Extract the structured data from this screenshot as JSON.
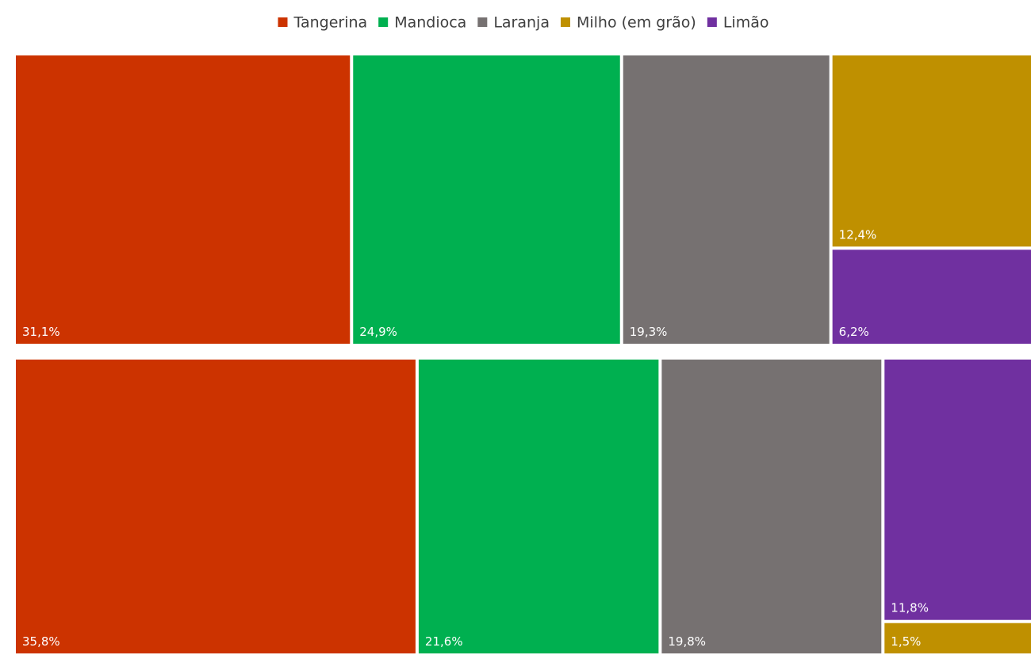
{
  "chart_data": {
    "type": "treemap",
    "series": [
      {
        "name": "Tangerina",
        "color": "#cc3300",
        "values": [
          31.1,
          35.8
        ],
        "value_labels": [
          "31,1%",
          "35,8%"
        ]
      },
      {
        "name": "Mandioca",
        "color": "#00b050",
        "values": [
          24.9,
          21.6
        ],
        "value_labels": [
          "24,9%",
          "21,6%"
        ]
      },
      {
        "name": "Laranja",
        "color": "#767171",
        "values": [
          19.3,
          19.8
        ],
        "value_labels": [
          "19,3%",
          "19,8%"
        ]
      },
      {
        "name": "Milho (em grão)",
        "color": "#bf9000",
        "values": [
          12.4,
          1.5
        ],
        "value_labels": [
          "12,4%",
          "1,5%"
        ]
      },
      {
        "name": "Limão",
        "color": "#7030a0",
        "values": [
          6.2,
          11.8
        ],
        "value_labels": [
          "6,2%",
          "11,8%"
        ]
      }
    ],
    "legend": "top"
  }
}
